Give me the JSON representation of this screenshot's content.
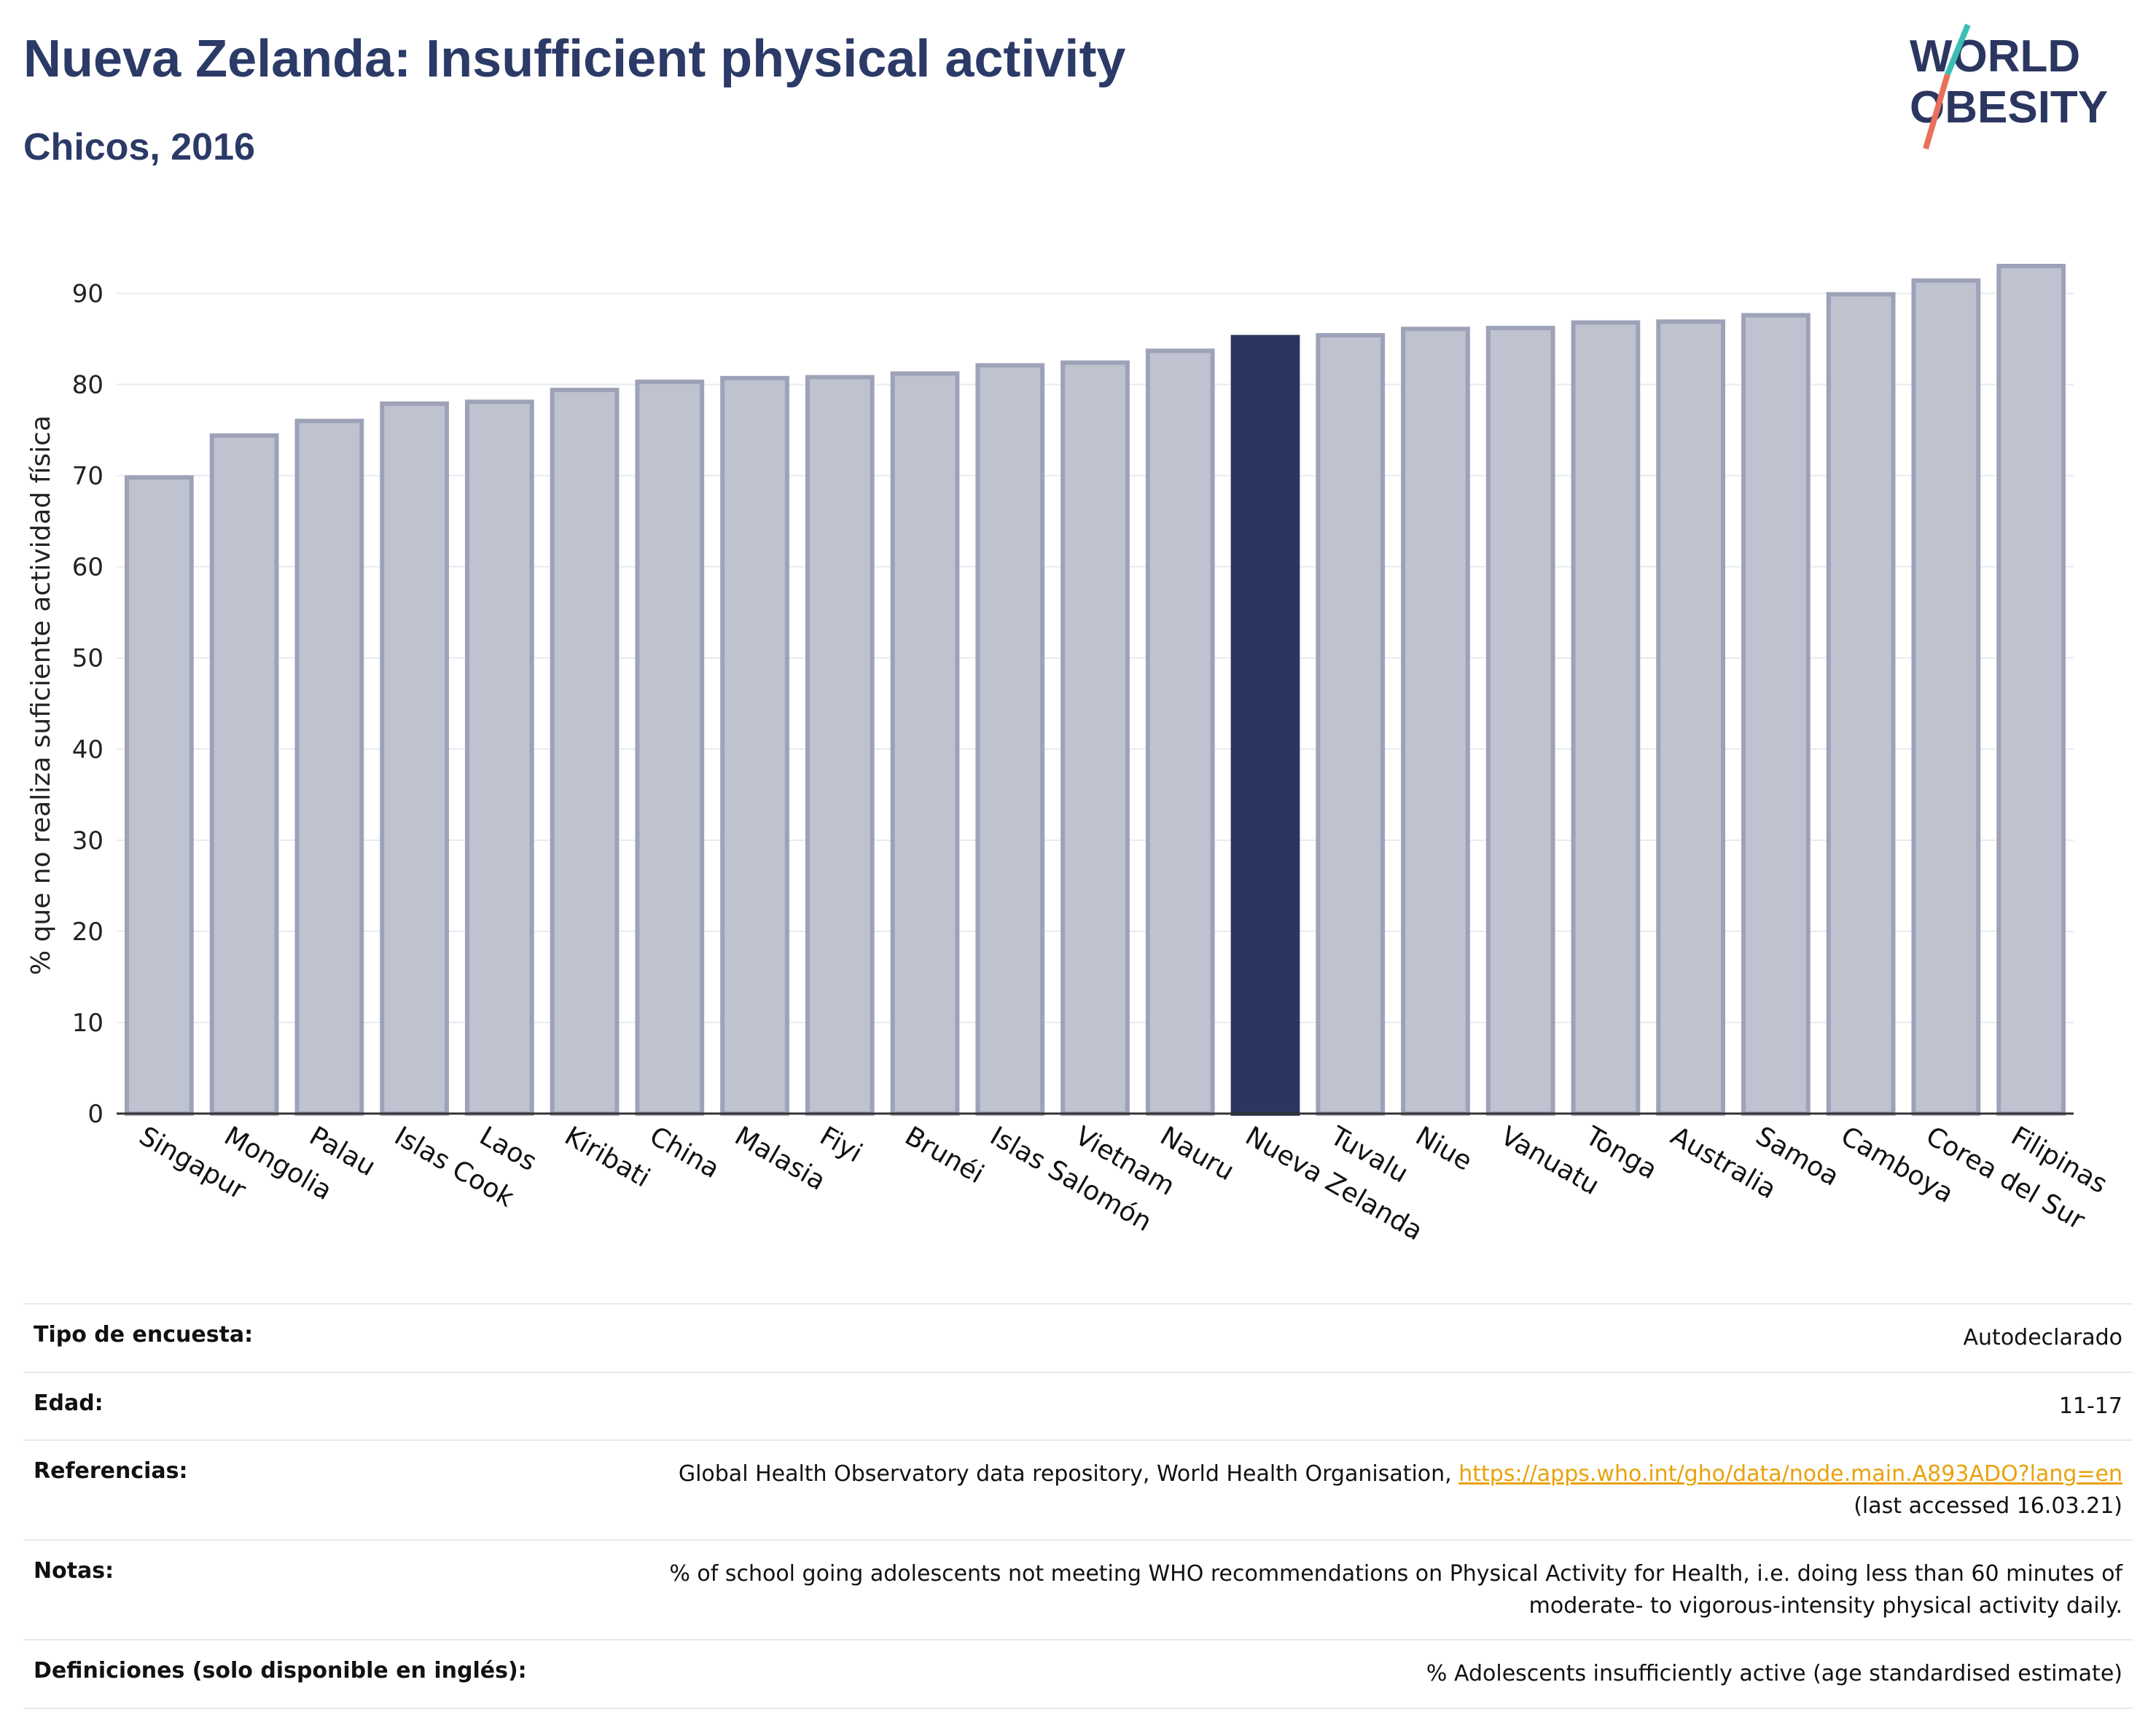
{
  "header": {
    "title": "Nueva Zelanda: Insufficient physical activity",
    "subtitle": "Chicos, 2016",
    "logo_line1": "WORLD",
    "logo_line2": "OBESITY"
  },
  "chart_data": {
    "type": "bar",
    "title": "",
    "xlabel": "",
    "ylabel": "% que no realiza suficiente actividad física",
    "ylim": [
      0,
      95
    ],
    "yticks": [
      0,
      10,
      20,
      30,
      40,
      50,
      60,
      70,
      80,
      90
    ],
    "grid": true,
    "categories": [
      "Singapur",
      "Mongolia",
      "Palau",
      "Islas Cook",
      "Laos",
      "Kiribati",
      "China",
      "Malasia",
      "Fiyi",
      "Brunéi",
      "Islas Salomón",
      "Vietnam",
      "Nauru",
      "Nueva Zelanda",
      "Tuvalu",
      "Niue",
      "Vanuatu",
      "Tonga",
      "Australia",
      "Samoa",
      "Camboya",
      "Corea del Sur",
      "Filipinas"
    ],
    "values": [
      69.8,
      74.4,
      76.0,
      77.9,
      78.1,
      79.4,
      80.3,
      80.7,
      80.8,
      81.2,
      82.1,
      82.4,
      83.7,
      85.2,
      85.4,
      86.1,
      86.2,
      86.8,
      86.9,
      87.6,
      89.9,
      91.4,
      93.0
    ],
    "highlight": "Nueva Zelanda",
    "colors": {
      "bar": "#bfc2cf",
      "bar_border": "#9da2b8",
      "highlight": "#2b3660",
      "grid": "#e8eaf0",
      "axis": "#333333"
    }
  },
  "meta": {
    "rows": [
      {
        "label": "Tipo de encuesta:",
        "value": "Autodeclarado"
      },
      {
        "label": "Edad:",
        "value": "11-17"
      },
      {
        "label": "Referencias:",
        "value": "Global Health Observatory data repository, World Health Organisation,",
        "link": "https://apps.who.int/gho/data/node.main.A893ADO?lang=en",
        "value_after": "(last accessed 16.03.21)"
      },
      {
        "label": "Notas:",
        "value": "% of school going adolescents not meeting WHO recommendations on Physical Activity for Health, i.e. doing less than 60 minutes of",
        "value_after": "moderate- to vigorous-intensity physical activity daily."
      },
      {
        "label": "Definiciones (solo disponible en inglés):",
        "value": "% Adolescents insufficiently active (age standardised estimate)"
      }
    ]
  }
}
